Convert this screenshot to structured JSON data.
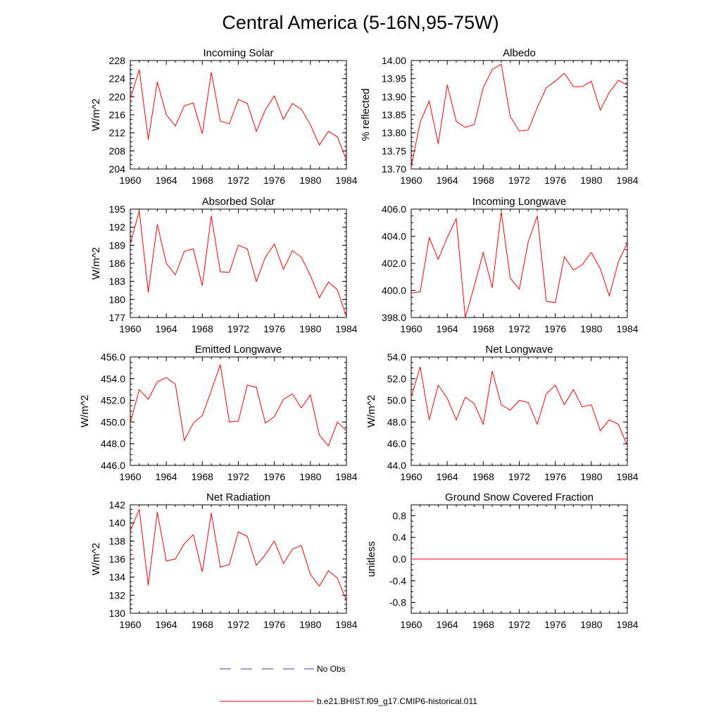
{
  "title": "Central America (5-16N,95-75W)",
  "legend": [
    {
      "label": "No Obs",
      "color": "#3a3aaa",
      "style": "dashed"
    },
    {
      "label": "b.e21.BHIST.f09_g17.CMIP6-historical.011",
      "color": "#ff0000",
      "style": "solid"
    }
  ],
  "chart_data": [
    {
      "type": "line",
      "title": "Incoming Solar",
      "ylabel": "W/m^2",
      "xlim": [
        1960,
        1984
      ],
      "ylim": [
        204,
        228
      ],
      "yticks": [
        "204",
        "208",
        "212",
        "216",
        "220",
        "224",
        "228"
      ],
      "xticks": [
        "1960",
        "1964",
        "1968",
        "1972",
        "1976",
        "1980",
        "1984"
      ],
      "x": [
        1960,
        1961,
        1962,
        1963,
        1964,
        1965,
        1966,
        1967,
        1968,
        1969,
        1970,
        1971,
        1972,
        1973,
        1974,
        1975,
        1976,
        1977,
        1978,
        1979,
        1980,
        1981,
        1982,
        1983,
        1984
      ],
      "series": [
        {
          "values": [
            219.5,
            226.0,
            210.5,
            223.3,
            216.0,
            213.5,
            218.0,
            218.6,
            211.8,
            225.4,
            214.6,
            214.0,
            219.4,
            218.5,
            212.3,
            217.1,
            220.2,
            215.0,
            218.5,
            217.2,
            213.8,
            209.3,
            212.3,
            211.1,
            206.0
          ]
        }
      ]
    },
    {
      "type": "line",
      "title": "Albedo",
      "ylabel": "% reflected",
      "xlim": [
        1960,
        1984
      ],
      "ylim": [
        13.7,
        14.0
      ],
      "yticks": [
        "13.70",
        "13.75",
        "13.80",
        "13.85",
        "13.90",
        "13.95",
        "14.00"
      ],
      "xticks": [
        "1960",
        "1964",
        "1968",
        "1972",
        "1976",
        "1980",
        "1984"
      ],
      "x": [
        1960,
        1961,
        1962,
        1963,
        1964,
        1965,
        1966,
        1967,
        1968,
        1969,
        1970,
        1971,
        1972,
        1973,
        1974,
        1975,
        1976,
        1977,
        1978,
        1979,
        1980,
        1981,
        1982,
        1983,
        1984
      ],
      "series": [
        {
          "values": [
            13.705,
            13.83,
            13.888,
            13.77,
            13.933,
            13.832,
            13.815,
            13.823,
            13.925,
            13.975,
            13.99,
            13.845,
            13.805,
            13.808,
            13.87,
            13.925,
            13.943,
            13.965,
            13.928,
            13.928,
            13.943,
            13.863,
            13.912,
            13.945,
            13.932
          ]
        }
      ]
    },
    {
      "type": "line",
      "title": "Absorbed Solar",
      "ylabel": "W/m^2",
      "xlim": [
        1960,
        1984
      ],
      "ylim": [
        177,
        195
      ],
      "yticks": [
        "177",
        "180",
        "183",
        "186",
        "189",
        "192",
        "195"
      ],
      "xticks": [
        "1960",
        "1964",
        "1968",
        "1972",
        "1976",
        "1980",
        "1984"
      ],
      "x": [
        1960,
        1961,
        1962,
        1963,
        1964,
        1965,
        1966,
        1967,
        1968,
        1969,
        1970,
        1971,
        1972,
        1973,
        1974,
        1975,
        1976,
        1977,
        1978,
        1979,
        1980,
        1981,
        1982,
        1983,
        1984
      ],
      "series": [
        {
          "values": [
            189.2,
            194.7,
            181.2,
            192.5,
            186.0,
            184.1,
            188.0,
            188.4,
            182.3,
            193.9,
            184.6,
            184.5,
            189.0,
            188.4,
            183.0,
            187.0,
            189.2,
            185.0,
            188.1,
            187.0,
            184.0,
            180.3,
            182.9,
            181.6,
            177.1
          ]
        }
      ]
    },
    {
      "type": "line",
      "title": "Incoming Longwave",
      "ylabel": "",
      "xlim": [
        1960,
        1984
      ],
      "ylim": [
        398.0,
        406.0
      ],
      "yticks": [
        "398.0",
        "400.0",
        "402.0",
        "404.0",
        "406.0"
      ],
      "xticks": [
        "1960",
        "1964",
        "1968",
        "1972",
        "1976",
        "1980",
        "1984"
      ],
      "x": [
        1960,
        1961,
        1962,
        1963,
        1964,
        1965,
        1966,
        1967,
        1968,
        1969,
        1970,
        1971,
        1972,
        1973,
        1974,
        1975,
        1976,
        1977,
        1978,
        1979,
        1980,
        1981,
        1982,
        1983,
        1984
      ],
      "series": [
        {
          "values": [
            399.8,
            399.9,
            403.9,
            402.3,
            403.9,
            405.3,
            398.0,
            400.3,
            402.8,
            400.2,
            405.8,
            400.9,
            400.1,
            403.6,
            405.5,
            399.2,
            399.1,
            402.5,
            401.5,
            401.9,
            402.8,
            401.6,
            399.6,
            402.1,
            403.5
          ]
        }
      ]
    },
    {
      "type": "line",
      "title": "Emitted Longwave",
      "ylabel": "W/m^2",
      "xlim": [
        1960,
        1984
      ],
      "ylim": [
        446.0,
        456.0
      ],
      "yticks": [
        "446.0",
        "448.0",
        "450.0",
        "452.0",
        "454.0",
        "456.0"
      ],
      "xticks": [
        "1960",
        "1964",
        "1968",
        "1972",
        "1976",
        "1980",
        "1984"
      ],
      "x": [
        1960,
        1961,
        1962,
        1963,
        1964,
        1965,
        1966,
        1967,
        1968,
        1969,
        1970,
        1971,
        1972,
        1973,
        1974,
        1975,
        1976,
        1977,
        1978,
        1979,
        1980,
        1981,
        1982,
        1983,
        1984
      ],
      "series": [
        {
          "values": [
            449.9,
            453.0,
            452.1,
            453.7,
            454.1,
            453.5,
            448.3,
            449.9,
            450.6,
            452.9,
            455.3,
            450.0,
            450.1,
            453.4,
            453.2,
            449.9,
            450.5,
            452.1,
            452.6,
            451.3,
            452.5,
            448.8,
            447.8,
            450.0,
            449.2
          ]
        }
      ]
    },
    {
      "type": "line",
      "title": "Net Longwave",
      "ylabel": "W/m^2",
      "xlim": [
        1960,
        1984
      ],
      "ylim": [
        44.0,
        54.0
      ],
      "yticks": [
        "44.0",
        "46.0",
        "48.0",
        "50.0",
        "52.0",
        "54.0"
      ],
      "xticks": [
        "1960",
        "1964",
        "1968",
        "1972",
        "1976",
        "1980",
        "1984"
      ],
      "x": [
        1960,
        1961,
        1962,
        1963,
        1964,
        1965,
        1966,
        1967,
        1968,
        1969,
        1970,
        1971,
        1972,
        1973,
        1974,
        1975,
        1976,
        1977,
        1978,
        1979,
        1980,
        1981,
        1982,
        1983,
        1984
      ],
      "series": [
        {
          "values": [
            50.3,
            53.1,
            48.2,
            51.4,
            50.2,
            48.2,
            50.3,
            49.7,
            47.8,
            52.7,
            49.6,
            49.1,
            50.0,
            49.8,
            47.8,
            50.6,
            51.4,
            49.6,
            51.0,
            49.4,
            49.6,
            47.2,
            48.2,
            47.8,
            45.8
          ]
        }
      ]
    },
    {
      "type": "line",
      "title": "Net Radiation",
      "ylabel": "W/m^2",
      "xlim": [
        1960,
        1984
      ],
      "ylim": [
        130,
        142
      ],
      "yticks": [
        "130",
        "132",
        "134",
        "136",
        "138",
        "140",
        "142"
      ],
      "xticks": [
        "1960",
        "1964",
        "1968",
        "1972",
        "1976",
        "1980",
        "1984"
      ],
      "x": [
        1960,
        1961,
        1962,
        1963,
        1964,
        1965,
        1966,
        1967,
        1968,
        1969,
        1970,
        1971,
        1972,
        1973,
        1974,
        1975,
        1976,
        1977,
        1978,
        1979,
        1980,
        1981,
        1982,
        1983,
        1984
      ],
      "series": [
        {
          "values": [
            139.1,
            141.5,
            133.1,
            141.2,
            135.8,
            136.0,
            137.7,
            138.7,
            134.6,
            141.1,
            135.1,
            135.4,
            139.0,
            138.5,
            135.3,
            136.5,
            138.0,
            135.5,
            137.1,
            137.5,
            134.3,
            133.0,
            134.7,
            133.9,
            131.4
          ]
        }
      ]
    },
    {
      "type": "line",
      "title": "Ground Snow Covered Fraction",
      "ylabel": "unitless",
      "xlim": [
        1960,
        1984
      ],
      "ylim": [
        -1.0,
        1.0
      ],
      "yticks": [
        "-0.8",
        "-0.4",
        "0.0",
        "0.4",
        "0.8"
      ],
      "ytickvals": [
        -0.8,
        -0.4,
        0.0,
        0.4,
        0.8
      ],
      "xticks": [
        "1960",
        "1964",
        "1968",
        "1972",
        "1976",
        "1980",
        "1984"
      ],
      "x": [
        1960,
        1961,
        1962,
        1963,
        1964,
        1965,
        1966,
        1967,
        1968,
        1969,
        1970,
        1971,
        1972,
        1973,
        1974,
        1975,
        1976,
        1977,
        1978,
        1979,
        1980,
        1981,
        1982,
        1983,
        1984
      ],
      "series": [
        {
          "values": [
            0,
            0,
            0,
            0,
            0,
            0,
            0,
            0,
            0,
            0,
            0,
            0,
            0,
            0,
            0,
            0,
            0,
            0,
            0,
            0,
            0,
            0,
            0,
            0,
            0
          ]
        }
      ]
    }
  ]
}
